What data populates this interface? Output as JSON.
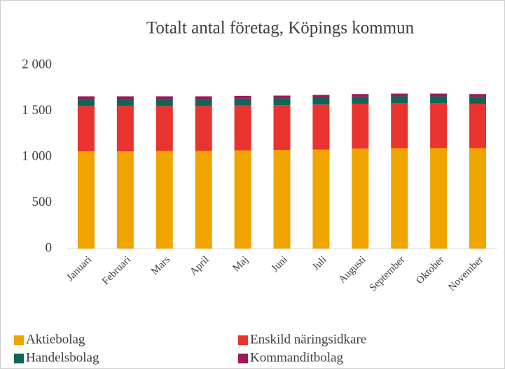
{
  "chart_data": {
    "type": "stacked_bar",
    "title": "Totalt antal företag, Köpings kommun",
    "categories": [
      "Januari",
      "Februari",
      "Mars",
      "April",
      "Maj",
      "Juni",
      "Juli",
      "Augusti",
      "September",
      "Oktober",
      "November"
    ],
    "series": [
      {
        "name": "Aktiebolag",
        "color": "#f0a400",
        "values": [
          1060,
          1060,
          1065,
          1065,
          1070,
          1075,
          1080,
          1090,
          1095,
          1095,
          1095
        ]
      },
      {
        "name": "Enskild näringsidkare",
        "color": "#e8332f",
        "values": [
          495,
          495,
          490,
          490,
          490,
          488,
          490,
          490,
          490,
          490,
          485
        ]
      },
      {
        "name": "Handelsbolag",
        "color": "#0f6656",
        "values": [
          75,
          75,
          75,
          75,
          75,
          75,
          75,
          75,
          75,
          75,
          75
        ]
      },
      {
        "name": "Kommanditbolag",
        "color": "#a0185b",
        "values": [
          30,
          30,
          30,
          30,
          30,
          30,
          30,
          30,
          30,
          30,
          30
        ]
      }
    ],
    "ylim": [
      0,
      2000
    ],
    "yticks": [
      0,
      500,
      {
        "value": 1000,
        "label": "1 000"
      },
      {
        "value": 1500,
        "label": "1 500"
      },
      {
        "value": 2000,
        "label": "2 000"
      }
    ],
    "grid": false,
    "legend": "bottom"
  }
}
